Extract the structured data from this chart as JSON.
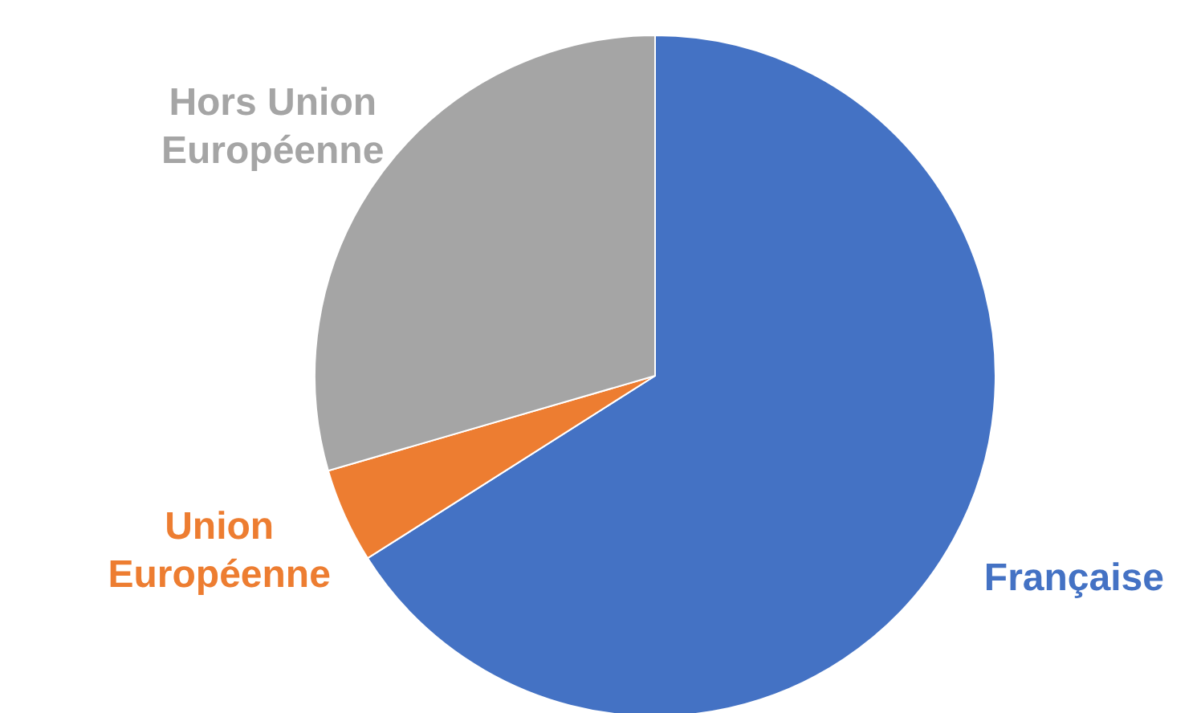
{
  "chart_data": {
    "type": "pie",
    "categories": [
      "Française",
      "Union Européenne",
      "Hors Union Européenne"
    ],
    "values": [
      66,
      4.5,
      29.5
    ],
    "colors": [
      "#4472c4",
      "#ed7d31",
      "#a5a5a5"
    ]
  }
}
